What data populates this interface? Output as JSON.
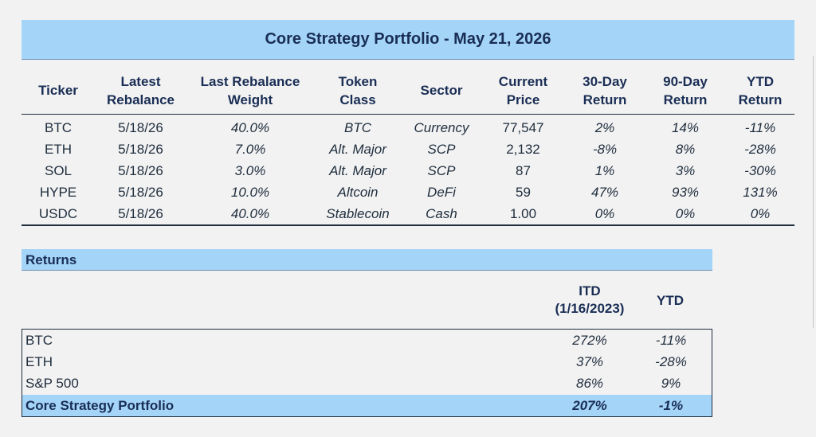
{
  "title": "Core Strategy Portfolio - May 21, 2026",
  "holdings": {
    "headers": {
      "ticker": "Ticker",
      "latest_rebalance_1": "Latest",
      "latest_rebalance_2": "Rebalance",
      "weight_1": "Last Rebalance",
      "weight_2": "Weight",
      "token_class_1": "Token",
      "token_class_2": "Class",
      "sector": "Sector",
      "price_1": "Current",
      "price_2": "Price",
      "r30_1": "30-Day",
      "r30_2": "Return",
      "r90_1": "90-Day",
      "r90_2": "Return",
      "ytd_1": "YTD",
      "ytd_2": "Return"
    },
    "rows": [
      {
        "ticker": "BTC",
        "rebalance": "5/18/26",
        "weight": "40.0%",
        "token_class": "BTC",
        "sector": "Currency",
        "price": "77,547",
        "r30": "2%",
        "r90": "14%",
        "ytd": "-11%"
      },
      {
        "ticker": "ETH",
        "rebalance": "5/18/26",
        "weight": "7.0%",
        "token_class": "Alt. Major",
        "sector": "SCP",
        "price": "2,132",
        "r30": "-8%",
        "r90": "8%",
        "ytd": "-28%"
      },
      {
        "ticker": "SOL",
        "rebalance": "5/18/26",
        "weight": "3.0%",
        "token_class": "Alt. Major",
        "sector": "SCP",
        "price": "87",
        "r30": "1%",
        "r90": "3%",
        "ytd": "-30%"
      },
      {
        "ticker": "HYPE",
        "rebalance": "5/18/26",
        "weight": "10.0%",
        "token_class": "Altcoin",
        "sector": "DeFi",
        "price": "59",
        "r30": "47%",
        "r90": "93%",
        "ytd": "131%"
      },
      {
        "ticker": "USDC",
        "rebalance": "5/18/26",
        "weight": "40.0%",
        "token_class": "Stablecoin",
        "sector": "Cash",
        "price": "1.00",
        "r30": "0%",
        "r90": "0%",
        "ytd": "0%"
      }
    ]
  },
  "returns": {
    "title": "Returns",
    "itd_header_1": "ITD",
    "itd_header_2": "(1/16/2023)",
    "ytd_header": "YTD",
    "rows": [
      {
        "label": "BTC",
        "itd": "272%",
        "ytd": "-11%"
      },
      {
        "label": "ETH",
        "itd": "37%",
        "ytd": "-28%"
      },
      {
        "label": "S&P 500",
        "itd": "86%",
        "ytd": "9%"
      },
      {
        "label": "Core Strategy Portfolio",
        "itd": "207%",
        "ytd": "-1%"
      }
    ]
  },
  "colors": {
    "header_fill": "#a4d4f8",
    "positive": "#1a8a1a",
    "negative": "#e0201c",
    "title_text": "#1a2e55"
  }
}
